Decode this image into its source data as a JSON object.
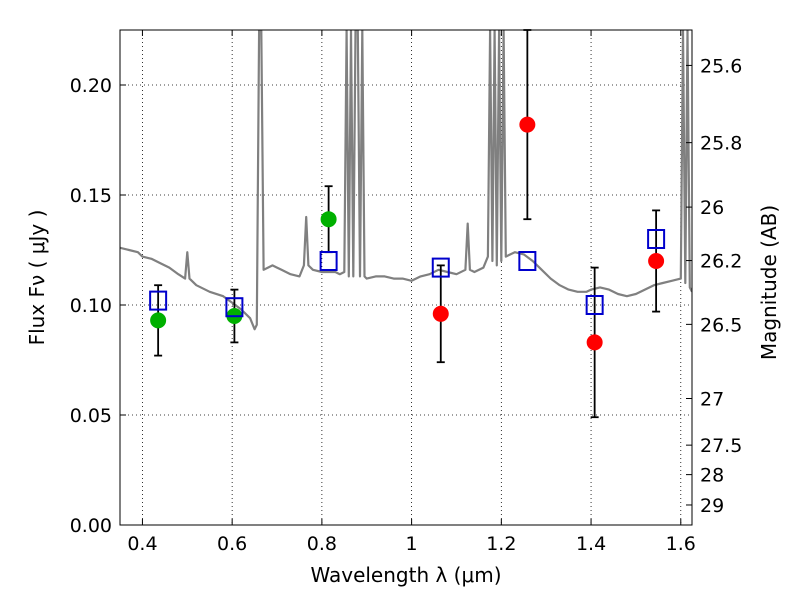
{
  "chart_data": {
    "type": "scatter",
    "xlabel": "Wavelength  λ (μm)",
    "ylabel": "Flux  Fν  ( μJy )",
    "y2label": "Magnitude (AB)",
    "xlim": [
      0.35,
      1.625
    ],
    "ylim": [
      0.0,
      0.225
    ],
    "x_ticks": [
      0.4,
      0.6,
      0.8,
      1.0,
      1.2,
      1.4,
      1.6
    ],
    "x_tick_labels": [
      "0.4",
      "0.6",
      "0.8",
      "1",
      "1.2",
      "1.4",
      "1.6"
    ],
    "y_ticks": [
      0.0,
      0.05,
      0.1,
      0.15,
      0.2
    ],
    "y_tick_labels": [
      "0.00",
      "0.05",
      "0.10",
      "0.15",
      "0.20"
    ],
    "y2_ticks": [
      {
        "label": "25.6",
        "flux": 0.2089
      },
      {
        "label": "25.8",
        "flux": 0.1738
      },
      {
        "label": "26",
        "flux": 0.1445
      },
      {
        "label": "26.2",
        "flux": 0.1202
      },
      {
        "label": "26.5",
        "flux": 0.0912
      },
      {
        "label": "27",
        "flux": 0.0575
      },
      {
        "label": "27.5",
        "flux": 0.0363
      },
      {
        "label": "28",
        "flux": 0.0229
      },
      {
        "label": "29",
        "flux": 0.0091
      }
    ],
    "grid": true,
    "colors": {
      "spectrum": "#808080",
      "green_points": "#00b000",
      "red_points": "#ff0000",
      "model_squares": "#0000cc",
      "error_bars": "#000000"
    },
    "series": [
      {
        "marker": "circle-green",
        "x": [
          0.435,
          0.605,
          0.815
        ],
        "y": [
          0.093,
          0.095,
          0.139
        ],
        "yerr": [
          0.016,
          0.012,
          0.015
        ]
      },
      {
        "marker": "circle-red",
        "x": [
          1.065,
          1.258,
          1.408,
          1.545
        ],
        "y": [
          0.096,
          0.182,
          0.083,
          0.12
        ],
        "yerr": [
          0.022,
          0.043,
          0.034,
          0.023
        ]
      },
      {
        "marker": "square-blue",
        "x": [
          0.435,
          0.605,
          0.815,
          1.065,
          1.258,
          1.408,
          1.545
        ],
        "y": [
          0.102,
          0.099,
          0.12,
          0.117,
          0.12,
          0.1,
          0.13
        ]
      }
    ],
    "spectrum": {
      "x": [
        0.35,
        0.37,
        0.39,
        0.4,
        0.42,
        0.44,
        0.46,
        0.48,
        0.495,
        0.5,
        0.505,
        0.52,
        0.55,
        0.58,
        0.6,
        0.62,
        0.64,
        0.65,
        0.655,
        0.66,
        0.665,
        0.67,
        0.68,
        0.69,
        0.7,
        0.71,
        0.72,
        0.73,
        0.75,
        0.76,
        0.765,
        0.77,
        0.78,
        0.8,
        0.82,
        0.83,
        0.84,
        0.85,
        0.855,
        0.86,
        0.865,
        0.87,
        0.875,
        0.88,
        0.885,
        0.89,
        0.895,
        0.9,
        0.92,
        0.94,
        0.96,
        0.98,
        1.0,
        1.02,
        1.04,
        1.06,
        1.08,
        1.1,
        1.12,
        1.125,
        1.13,
        1.14,
        1.16,
        1.17,
        1.175,
        1.18,
        1.185,
        1.19,
        1.195,
        1.2,
        1.205,
        1.21,
        1.23,
        1.25,
        1.27,
        1.29,
        1.31,
        1.33,
        1.35,
        1.37,
        1.39,
        1.4,
        1.42,
        1.44,
        1.46,
        1.48,
        1.5,
        1.52,
        1.54,
        1.56,
        1.58,
        1.6,
        1.605,
        1.61,
        1.615,
        1.62,
        1.625
      ],
      "y": [
        0.126,
        0.125,
        0.124,
        0.122,
        0.121,
        0.119,
        0.117,
        0.114,
        0.112,
        0.124,
        0.112,
        0.109,
        0.106,
        0.104,
        0.101,
        0.098,
        0.094,
        0.089,
        0.091,
        0.225,
        0.225,
        0.116,
        0.117,
        0.118,
        0.117,
        0.116,
        0.115,
        0.114,
        0.113,
        0.118,
        0.14,
        0.118,
        0.116,
        0.115,
        0.115,
        0.115,
        0.114,
        0.115,
        0.225,
        0.113,
        0.225,
        0.113,
        0.225,
        0.225,
        0.113,
        0.225,
        0.113,
        0.112,
        0.113,
        0.113,
        0.112,
        0.112,
        0.111,
        0.113,
        0.114,
        0.116,
        0.115,
        0.114,
        0.116,
        0.137,
        0.116,
        0.115,
        0.117,
        0.122,
        0.225,
        0.12,
        0.225,
        0.118,
        0.225,
        0.12,
        0.225,
        0.122,
        0.124,
        0.123,
        0.12,
        0.116,
        0.112,
        0.109,
        0.107,
        0.106,
        0.106,
        0.107,
        0.108,
        0.107,
        0.105,
        0.104,
        0.105,
        0.107,
        0.109,
        0.11,
        0.111,
        0.112,
        0.225,
        0.11,
        0.225,
        0.108,
        0.106
      ]
    }
  }
}
